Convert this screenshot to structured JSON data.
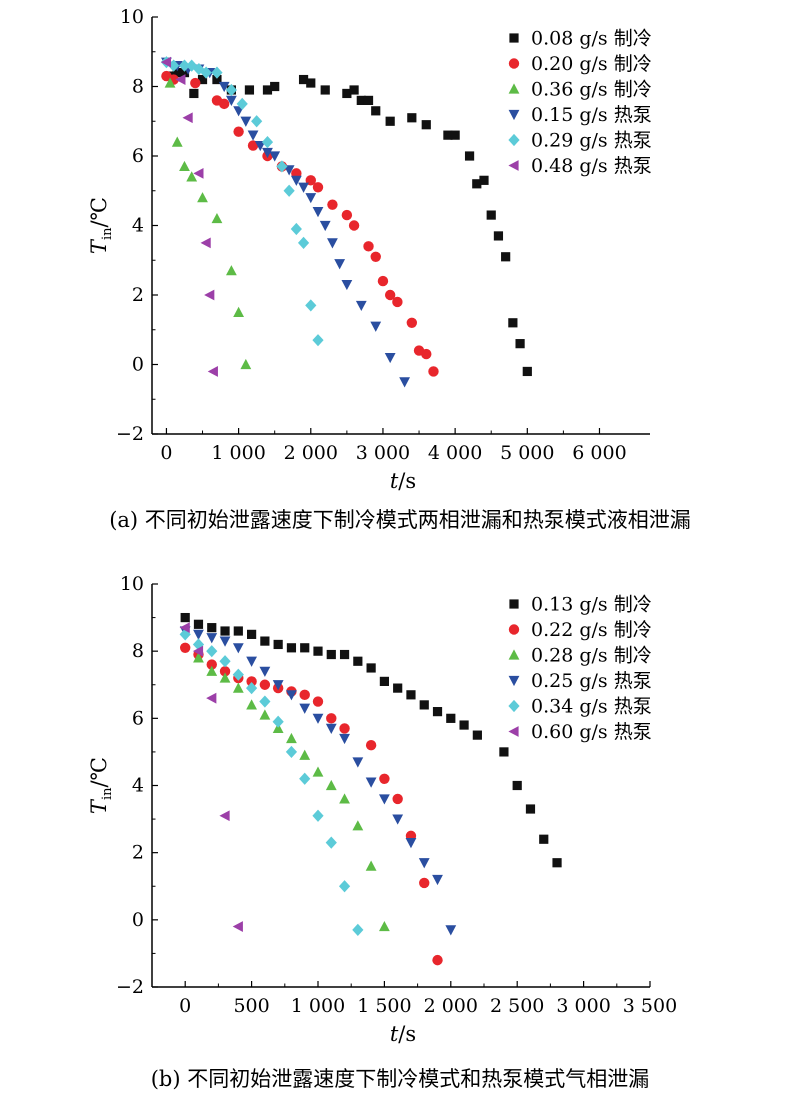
{
  "chart_data": [
    {
      "type": "scatter",
      "caption": "(a) 不同初始泄露速度下制冷模式两相泄漏和热泵模式液相泄漏",
      "xlabel_main": "t",
      "xlabel_unit": "/s",
      "ylabel_main": "T",
      "ylabel_sub": "in",
      "ylabel_unit": "/℃",
      "xlim": [
        -200,
        6700
      ],
      "ylim": [
        -2,
        10
      ],
      "xticks": [
        0,
        1000,
        2000,
        3000,
        4000,
        5000,
        6000
      ],
      "xtick_labels": [
        "0",
        "1 000",
        "2 000",
        "3 000",
        "4 000",
        "5 000",
        "6 000"
      ],
      "yticks": [
        -2,
        0,
        2,
        4,
        6,
        8,
        10
      ],
      "ytick_labels": [
        "−2",
        "0",
        "2",
        "4",
        "6",
        "8",
        "10"
      ],
      "legend_position": "top-right",
      "series": [
        {
          "name": "0.08 g/s 制冷",
          "marker": "square",
          "color": "#111111",
          "x": [
            30,
            150,
            250,
            380,
            500,
            700,
            900,
            1150,
            1400,
            1500,
            1900,
            2000,
            2200,
            2500,
            2600,
            2700,
            2800,
            2900,
            3100,
            3400,
            3600,
            3900,
            4000,
            4200,
            4300,
            4400,
            4500,
            4600,
            4700,
            4800,
            4900,
            5000
          ],
          "y": [
            8.3,
            8.4,
            8.4,
            7.8,
            8.2,
            8.2,
            7.9,
            7.9,
            7.9,
            8.0,
            8.2,
            8.1,
            7.9,
            7.8,
            7.9,
            7.6,
            7.6,
            7.3,
            7.0,
            7.1,
            6.9,
            6.6,
            6.6,
            6.0,
            5.2,
            5.3,
            4.3,
            3.7,
            3.1,
            1.2,
            0.6,
            -0.2
          ]
        },
        {
          "name": "0.20 g/s 制冷",
          "marker": "circle",
          "color": "#e8262c",
          "x": [
            0,
            100,
            400,
            700,
            800,
            1000,
            1200,
            1400,
            1600,
            1800,
            2000,
            2100,
            2300,
            2500,
            2600,
            2800,
            2900,
            3000,
            3100,
            3200,
            3400,
            3500,
            3600,
            3700
          ],
          "y": [
            8.3,
            8.2,
            8.1,
            7.6,
            7.5,
            6.7,
            6.3,
            6.0,
            5.7,
            5.5,
            5.3,
            5.1,
            4.6,
            4.3,
            4.0,
            3.4,
            3.1,
            2.4,
            2.0,
            1.8,
            1.2,
            0.4,
            0.3,
            -0.2
          ]
        },
        {
          "name": "0.36 g/s 制冷",
          "marker": "triangle-up",
          "color": "#5dbb46",
          "x": [
            50,
            150,
            250,
            350,
            500,
            700,
            900,
            1000,
            1100
          ],
          "y": [
            8.1,
            6.4,
            5.7,
            5.4,
            4.8,
            4.2,
            2.7,
            1.5,
            0.0
          ]
        },
        {
          "name": "0.15 g/s 热泵",
          "marker": "triangle-down",
          "color": "#2a4ea0",
          "x": [
            0,
            150,
            300,
            450,
            600,
            800,
            900,
            1000,
            1100,
            1200,
            1300,
            1400,
            1500,
            1700,
            1800,
            1900,
            2000,
            2100,
            2200,
            2300,
            2400,
            2500,
            2700,
            2900,
            3100,
            3300
          ],
          "y": [
            8.7,
            8.6,
            8.5,
            8.5,
            8.4,
            8.0,
            7.6,
            7.3,
            7.0,
            6.6,
            6.3,
            6.1,
            6.0,
            5.6,
            5.3,
            5.1,
            4.8,
            4.4,
            4.0,
            3.5,
            2.9,
            2.3,
            1.7,
            1.1,
            0.2,
            -0.5
          ]
        },
        {
          "name": "0.29 g/s 热泵",
          "marker": "diamond",
          "color": "#5ccbd8",
          "x": [
            0,
            100,
            250,
            350,
            450,
            550,
            700,
            900,
            1050,
            1250,
            1400,
            1600,
            1700,
            1800,
            1900,
            2000,
            2100
          ],
          "y": [
            8.7,
            8.6,
            8.6,
            8.6,
            8.5,
            8.4,
            8.4,
            7.9,
            7.5,
            7.0,
            6.4,
            5.7,
            5.0,
            3.9,
            3.5,
            1.7,
            0.7
          ]
        },
        {
          "name": "0.48 g/s 热泵",
          "marker": "triangle-left",
          "color": "#9c3fa8",
          "x": [
            0,
            200,
            300,
            450,
            550,
            600,
            650
          ],
          "y": [
            8.7,
            8.2,
            7.1,
            5.5,
            3.5,
            2.0,
            -0.2
          ]
        }
      ]
    },
    {
      "type": "scatter",
      "caption": "(b) 不同初始泄露速度下制冷模式和热泵模式气相泄漏",
      "xlabel_main": "t",
      "xlabel_unit": "/s",
      "ylabel_main": "T",
      "ylabel_sub": "in",
      "ylabel_unit": "/℃",
      "xlim": [
        -250,
        3500
      ],
      "ylim": [
        -2,
        10
      ],
      "xticks": [
        0,
        500,
        1000,
        1500,
        2000,
        2500,
        3000,
        3500
      ],
      "xtick_labels": [
        "0",
        "500",
        "1 000",
        "1 500",
        "2 000",
        "2 500",
        "3 000",
        "3 500"
      ],
      "yticks": [
        -2,
        0,
        2,
        4,
        6,
        8,
        10
      ],
      "ytick_labels": [
        "−2",
        "0",
        "2",
        "4",
        "6",
        "8",
        "10"
      ],
      "legend_position": "top-right",
      "series": [
        {
          "name": "0.13 g/s 制冷",
          "marker": "square",
          "color": "#111111",
          "x": [
            0,
            100,
            200,
            300,
            400,
            500,
            600,
            700,
            800,
            900,
            1000,
            1100,
            1200,
            1300,
            1400,
            1500,
            1600,
            1700,
            1800,
            1900,
            2000,
            2100,
            2200,
            2400,
            2500,
            2600,
            2700,
            2800
          ],
          "y": [
            9.0,
            8.8,
            8.7,
            8.6,
            8.6,
            8.5,
            8.3,
            8.2,
            8.1,
            8.1,
            8.0,
            7.9,
            7.9,
            7.7,
            7.5,
            7.1,
            6.9,
            6.7,
            6.4,
            6.2,
            6.0,
            5.8,
            5.5,
            5.0,
            4.0,
            3.3,
            2.4,
            1.7
          ]
        },
        {
          "name": "0.22 g/s 制冷",
          "marker": "circle",
          "color": "#e8262c",
          "x": [
            0,
            100,
            200,
            300,
            400,
            500,
            600,
            700,
            800,
            900,
            1000,
            1100,
            1200,
            1400,
            1500,
            1600,
            1700,
            1800,
            1900
          ],
          "y": [
            8.1,
            7.9,
            7.6,
            7.4,
            7.2,
            7.1,
            7.0,
            6.9,
            6.8,
            6.7,
            6.5,
            6.0,
            5.7,
            5.2,
            4.2,
            3.6,
            2.5,
            1.1,
            -1.2
          ]
        },
        {
          "name": "0.28 g/s 制冷",
          "marker": "triangle-up",
          "color": "#5dbb46",
          "x": [
            100,
            200,
            300,
            400,
            500,
            600,
            700,
            800,
            900,
            1000,
            1100,
            1200,
            1300,
            1400,
            1500
          ],
          "y": [
            7.8,
            7.4,
            7.2,
            6.9,
            6.4,
            6.1,
            5.7,
            5.4,
            4.9,
            4.4,
            4.0,
            3.6,
            2.8,
            1.6,
            -0.2
          ]
        },
        {
          "name": "0.25 g/s 热泵",
          "marker": "triangle-down",
          "color": "#2a4ea0",
          "x": [
            0,
            100,
            200,
            300,
            400,
            500,
            600,
            700,
            800,
            900,
            1000,
            1100,
            1200,
            1300,
            1400,
            1500,
            1600,
            1700,
            1800,
            1900,
            2000
          ],
          "y": [
            8.6,
            8.5,
            8.4,
            8.3,
            8.1,
            7.7,
            7.4,
            7.0,
            6.7,
            6.3,
            6.0,
            5.7,
            5.4,
            4.7,
            4.1,
            3.6,
            3.0,
            2.3,
            1.7,
            1.2,
            -0.3
          ]
        },
        {
          "name": "0.34 g/s 热泵",
          "marker": "diamond",
          "color": "#5ccbd8",
          "x": [
            0,
            100,
            200,
            300,
            400,
            500,
            600,
            700,
            800,
            900,
            1000,
            1100,
            1200,
            1300
          ],
          "y": [
            8.5,
            8.2,
            8.0,
            7.7,
            7.3,
            6.9,
            6.5,
            5.9,
            5.0,
            4.2,
            3.1,
            2.3,
            1.0,
            -0.3
          ]
        },
        {
          "name": "0.60 g/s 热泵",
          "marker": "triangle-left",
          "color": "#9c3fa8",
          "x": [
            0,
            100,
            200,
            300,
            400
          ],
          "y": [
            8.7,
            8.0,
            6.6,
            3.1,
            -0.2
          ]
        }
      ]
    }
  ]
}
